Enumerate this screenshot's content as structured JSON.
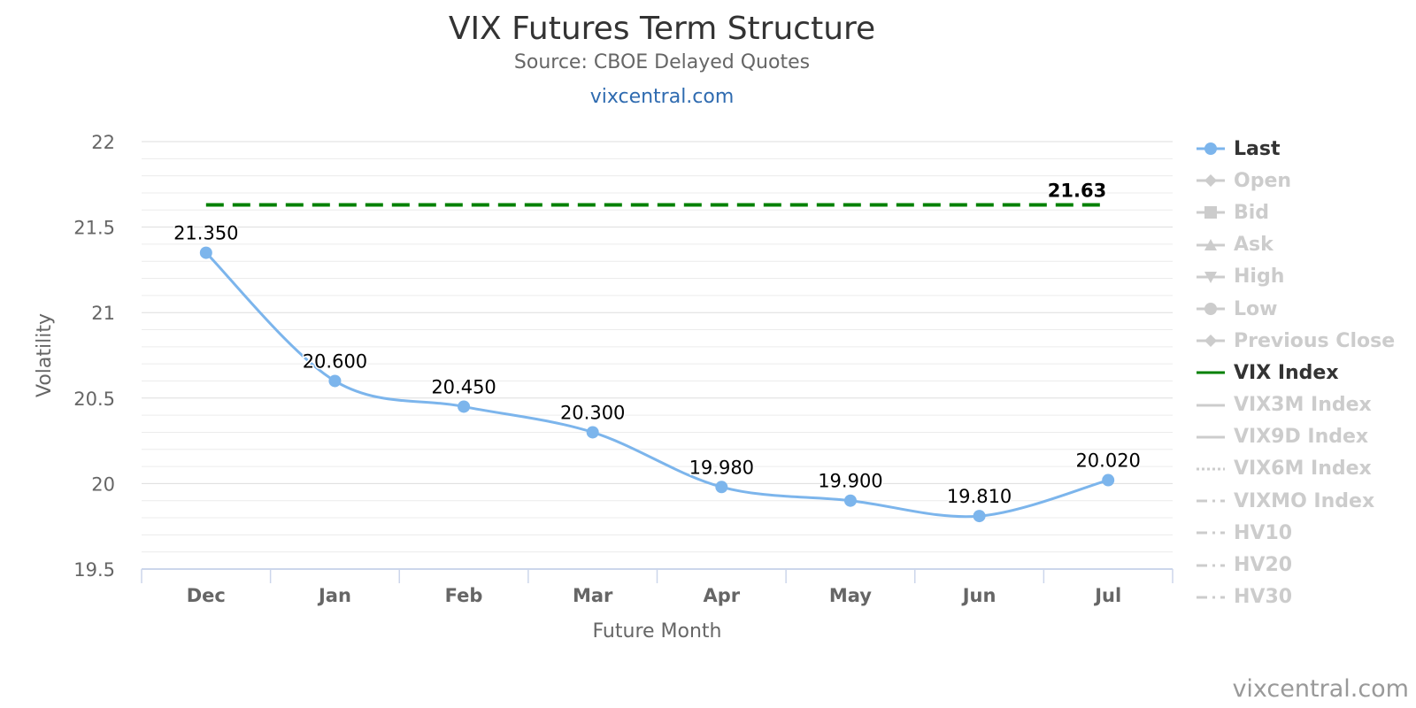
{
  "header": {
    "title": "VIX Futures Term Structure",
    "subtitle": "Source: CBOE Delayed Quotes",
    "link": "vixcentral.com"
  },
  "credit": "vixcentral.com",
  "colors": {
    "last": "#7cb5ec",
    "vix_index": "#008000",
    "inactive": "#cccccc",
    "grid": "#e6e6e6",
    "axis": "#ccd6eb"
  },
  "chart_data": {
    "type": "line",
    "categories": [
      "Dec",
      "Jan",
      "Feb",
      "Mar",
      "Apr",
      "May",
      "Jun",
      "Jul"
    ],
    "series": [
      {
        "name": "Last",
        "values": [
          21.35,
          20.6,
          20.45,
          20.3,
          19.98,
          19.9,
          19.81,
          20.02
        ],
        "labels": [
          "21.350",
          "20.600",
          "20.450",
          "20.300",
          "19.980",
          "19.900",
          "19.810",
          "20.020"
        ]
      },
      {
        "name": "VIX Index",
        "value": 21.63,
        "label": "21.63"
      }
    ],
    "xlabel": "Future Month",
    "ylabel": "Volatility",
    "ylim": [
      19.5,
      22
    ],
    "yticks": [
      "19.5",
      "20",
      "20.5",
      "21",
      "21.5",
      "22"
    ],
    "grid": true,
    "legend_placement": "right"
  },
  "legend": [
    {
      "label": "Last",
      "symbol": "line-circle",
      "active": true
    },
    {
      "label": "Open",
      "symbol": "line-diamond",
      "active": false
    },
    {
      "label": "Bid",
      "symbol": "line-square",
      "active": false
    },
    {
      "label": "Ask",
      "symbol": "line-triangle",
      "active": false
    },
    {
      "label": "High",
      "symbol": "line-triangle-down",
      "active": false
    },
    {
      "label": "Low",
      "symbol": "line-circle",
      "active": false
    },
    {
      "label": "Previous Close",
      "symbol": "line-diamond",
      "active": false
    },
    {
      "label": "VIX Index",
      "symbol": "line",
      "active": true
    },
    {
      "label": "VIX3M Index",
      "symbol": "line",
      "active": false
    },
    {
      "label": "VIX9D Index",
      "symbol": "line",
      "active": false
    },
    {
      "label": "VIX6M Index",
      "symbol": "dotted",
      "active": false
    },
    {
      "label": "VIXMO Index",
      "symbol": "dash-dot",
      "active": false
    },
    {
      "label": "HV10",
      "symbol": "dash-dot",
      "active": false
    },
    {
      "label": "HV20",
      "symbol": "dash-dot",
      "active": false
    },
    {
      "label": "HV30",
      "symbol": "dash-dot",
      "active": false
    }
  ]
}
